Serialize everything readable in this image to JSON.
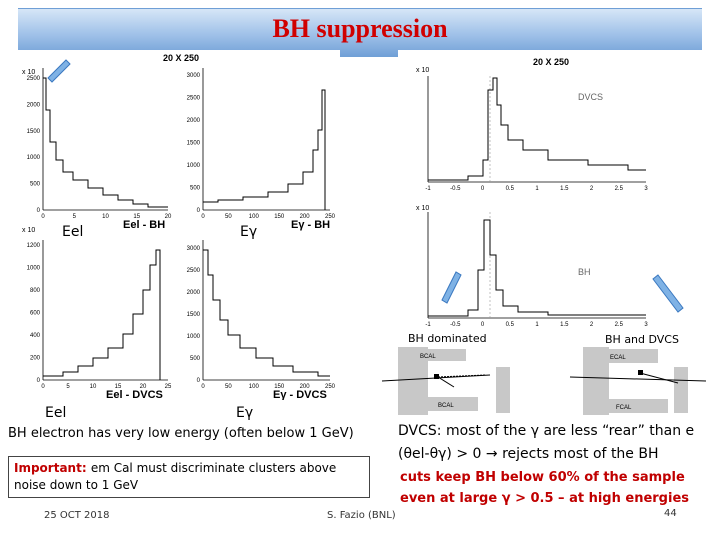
{
  "slide": {
    "title": "BH suppression",
    "footer_date": "25 OCT 2018",
    "footer_author": "S. Fazio (BNL)",
    "page_number": "44"
  },
  "left_panel": {
    "header": "20 X 250",
    "multiplier": "x 10",
    "labels": {
      "e_el_left_top": "Eel",
      "e_gamma_top": "Eγ",
      "e_el_left_bottom": "Eel",
      "e_gamma_bottom": "Eγ"
    },
    "hist_titles": {
      "top_left": "Eel - BH",
      "top_right": "Eγ - BH",
      "bottom_left": "Eel - DVCS",
      "bottom_right": "Eγ - DVCS"
    }
  },
  "right_panel": {
    "header": "20 X 250",
    "multiplier": "x 10",
    "top_label": "DVCS",
    "bottom_label": "BH",
    "axis_label": "θel-θγ",
    "bh_dominated": "BH dominated",
    "bh_and_dvcs": "BH and DVCS",
    "detector_labels": [
      "BCAL",
      "BCAL",
      "ECAL",
      "FCAL",
      "BCAL",
      "FCAL"
    ]
  },
  "text": {
    "bh_energy_note": "BH electron has very low energy (often below 1 GeV)",
    "important_prefix": "Important: ",
    "important_body": "em Cal must discriminate clusters above noise down to 1 GeV",
    "dvcs_line1": "DVCS: most of the γ are less “rear” than e",
    "dvcs_line2": "(θel-θγ) > 0  → rejects most of the BH",
    "cuts_line1": "cuts keep BH below 60% of the sample",
    "cuts_line2": "even at large γ > 0.5 – at high energies"
  },
  "axes": {
    "tl_y": [
      "0",
      "500",
      "1000",
      "1500",
      "2000",
      "2500"
    ],
    "tl_x": [
      "0",
      "5",
      "10",
      "15",
      "20"
    ],
    "tr_y": [
      "0",
      "500",
      "1000",
      "1500",
      "2000",
      "2500",
      "3000"
    ],
    "tr_x": [
      "0",
      "50",
      "100",
      "150",
      "200",
      "250"
    ],
    "bl_y": [
      "0",
      "200",
      "400",
      "600",
      "800",
      "1000",
      "1200"
    ],
    "bl_x": [
      "0",
      "5",
      "10",
      "15",
      "20",
      "25"
    ],
    "br_y": [
      "0",
      "500",
      "1000",
      "1500",
      "2000",
      "2500",
      "3000"
    ],
    "br_x": [
      "0",
      "50",
      "100",
      "150",
      "200",
      "250"
    ],
    "r_x": [
      "-1",
      "-0.5",
      "0",
      "0.5",
      "1",
      "1.5",
      "2",
      "2.5",
      "3"
    ]
  },
  "colors": {
    "title": "#d00000",
    "important": "#c00000",
    "cuts": "#c00000"
  }
}
